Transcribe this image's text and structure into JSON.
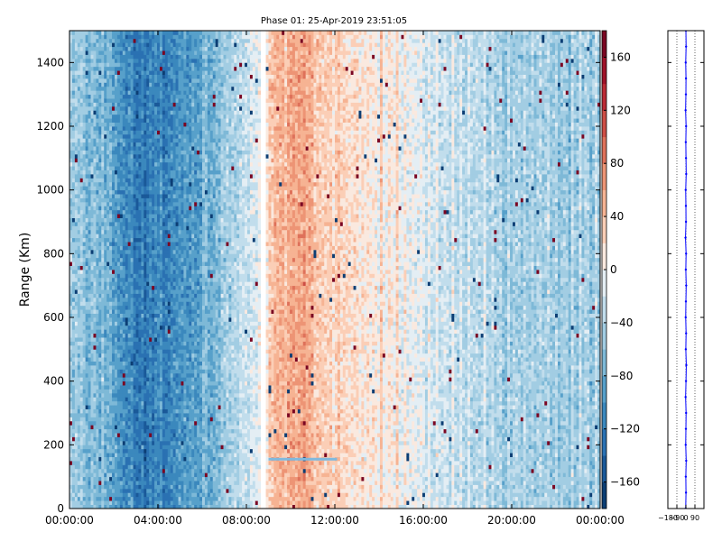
{
  "chart_data": [
    {
      "type": "heatmap",
      "title": "Phase 01: 25-Apr-2019 23:51:05",
      "xlabel": "",
      "ylabel": "Range (Km)",
      "x_ticks": [
        "00:00:00",
        "04:00:00",
        "08:00:00",
        "12:00:00",
        "16:00:00",
        "20:00:00",
        "00:00:00"
      ],
      "x_tick_hours": [
        0,
        4,
        8,
        12,
        16,
        20,
        24
      ],
      "xlim_hours": [
        0,
        24
      ],
      "ylim": [
        0,
        1500
      ],
      "y_ticks": [
        0,
        200,
        400,
        600,
        800,
        1000,
        1200,
        1400
      ],
      "colorbar": {
        "range": [
          -180,
          180
        ],
        "ticks": [
          -160,
          -120,
          -80,
          -40,
          0,
          40,
          80,
          120,
          160
        ],
        "levels": 18,
        "colormap": "RdBu_r"
      },
      "profile_hours": [
        0.0,
        0.5,
        1.0,
        1.5,
        2.0,
        2.5,
        3.0,
        3.5,
        4.0,
        4.5,
        5.0,
        5.5,
        6.0,
        6.5,
        7.0,
        7.5,
        8.0,
        8.5,
        9.0,
        9.5,
        10.0,
        10.5,
        11.0,
        11.5,
        12.0,
        12.5,
        13.0,
        13.5,
        14.0,
        14.5,
        15.0,
        15.5,
        16.0,
        16.5,
        17.0,
        17.5,
        18.0,
        18.5,
        19.0,
        19.5,
        20.0,
        20.5,
        21.0,
        21.5,
        22.0,
        22.5,
        23.0,
        23.5,
        24.0
      ],
      "profile_phase_deg": [
        -55,
        -60,
        -65,
        -70,
        -90,
        -110,
        -120,
        -118,
        -115,
        -110,
        -105,
        -95,
        -85,
        -70,
        -55,
        -40,
        -25,
        -15,
        20,
        55,
        60,
        55,
        50,
        40,
        30,
        20,
        15,
        10,
        5,
        0,
        -5,
        -10,
        -20,
        -25,
        -30,
        -35,
        -40,
        -45,
        -50,
        -50,
        -50,
        -52,
        -55,
        -55,
        -55,
        -55,
        -55,
        -55,
        -55
      ],
      "gaps_hours": [
        [
          8.6,
          8.9
        ]
      ],
      "annotations": [
        {
          "type": "horizontal-line",
          "hour_start": 9.0,
          "hour_end": 12.1,
          "range_km": 155
        }
      ]
    },
    {
      "type": "line",
      "title": "",
      "xlim": [
        -180,
        180
      ],
      "x_ticks": [
        "-180",
        "-90",
        "0",
        "90"
      ],
      "x_tick_values": [
        -180,
        -90,
        0,
        90
      ],
      "ylim": [
        0,
        1500
      ],
      "y_ticks": [
        0,
        200,
        400,
        600,
        800,
        1000,
        1200,
        1400
      ],
      "grid_x_values": [
        -90,
        0,
        90
      ],
      "series": [
        {
          "color": "#0000ff",
          "x": [
            -2,
            1,
            -1,
            3,
            -2,
            0,
            2,
            -3,
            1,
            4,
            -1,
            2,
            -2,
            0,
            3,
            -1,
            2,
            -4,
            1,
            0,
            -2,
            3,
            1,
            -1,
            2,
            -3,
            0,
            1,
            -2,
            2,
            0
          ],
          "y": [
            0,
            50,
            100,
            150,
            200,
            250,
            300,
            350,
            400,
            450,
            500,
            550,
            600,
            650,
            700,
            750,
            800,
            850,
            900,
            950,
            1000,
            1050,
            1100,
            1150,
            1200,
            1250,
            1300,
            1350,
            1400,
            1450,
            1500
          ]
        }
      ]
    }
  ]
}
